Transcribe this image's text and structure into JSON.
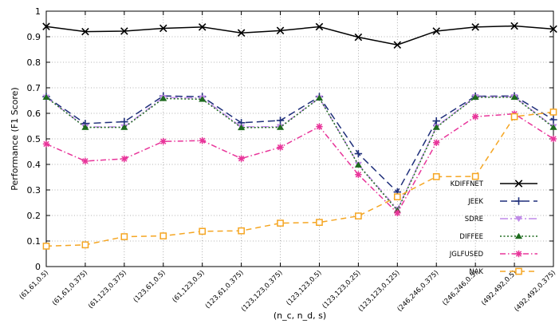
{
  "chart_data": {
    "type": "line",
    "title": "",
    "xlabel": "(n_c, n_d, s)",
    "ylabel": "Performance (F1 Score)",
    "ylim": [
      0,
      1
    ],
    "yticks": [
      0,
      0.1,
      0.2,
      0.3,
      0.4,
      0.5,
      0.6,
      0.7,
      0.8,
      0.9,
      1
    ],
    "ytick_labels": [
      "0",
      "0.1",
      "0.2",
      "0.3",
      "0.4",
      "0.5",
      "0.6",
      "0.7",
      "0.8",
      "0.9",
      "1"
    ],
    "grid": true,
    "legend_position": "right",
    "categories": [
      "(61,61,0.5)",
      "(61,61,0.375)",
      "(61,123,0.375)",
      "(123,61,0.5)",
      "(61,123,0.5)",
      "(123,61,0.375)",
      "(123,123,0.375)",
      "(123,123,0.5)",
      "(123,123,0.25)",
      "(123,123,0.125)",
      "(246,246,0.375)",
      "(246,246,0.5)",
      "(492,492,0.5)",
      "(492,492,0.375)"
    ],
    "series": [
      {
        "name": "KDIFFNET",
        "color": "#000000",
        "dash": "",
        "marker": "x",
        "values": [
          0.94,
          0.92,
          0.922,
          0.933,
          0.938,
          0.915,
          0.924,
          0.939,
          0.898,
          0.868,
          0.922,
          0.938,
          0.942,
          0.93
        ]
      },
      {
        "name": "JEEK",
        "color": "#1f2f7a",
        "dash": "9 5",
        "marker": "plus",
        "values": [
          0.665,
          0.56,
          0.567,
          0.668,
          0.665,
          0.563,
          0.572,
          0.665,
          0.442,
          0.292,
          0.57,
          0.667,
          0.668,
          0.575
        ]
      },
      {
        "name": "SDRE",
        "color": "#c08ce8",
        "dash": "10 3 2 3",
        "marker": "tri-down",
        "values": [
          0.663,
          0.547,
          0.547,
          0.662,
          0.66,
          0.547,
          0.548,
          0.66,
          0.4,
          0.225,
          0.548,
          0.665,
          0.665,
          0.548
        ]
      },
      {
        "name": "DIFFEE",
        "color": "#1e6b1e",
        "dash": "2 2.5",
        "marker": "tri-up",
        "values": [
          0.663,
          0.545,
          0.545,
          0.658,
          0.655,
          0.544,
          0.545,
          0.66,
          0.398,
          0.22,
          0.545,
          0.663,
          0.663,
          0.545
        ]
      },
      {
        "name": "JGLFUSED",
        "color": "#e8359a",
        "dash": "7 3 1.5 3",
        "marker": "star",
        "values": [
          0.48,
          0.413,
          0.422,
          0.49,
          0.493,
          0.423,
          0.467,
          0.548,
          0.36,
          0.21,
          0.485,
          0.587,
          0.598,
          0.5
        ]
      },
      {
        "name": "NAK",
        "color": "#f5a623",
        "dash": "7 5",
        "marker": "square",
        "values": [
          0.08,
          0.085,
          0.117,
          0.12,
          0.138,
          0.14,
          0.17,
          0.173,
          0.198,
          0.273,
          0.352,
          0.353,
          0.587,
          0.605
        ]
      }
    ]
  }
}
